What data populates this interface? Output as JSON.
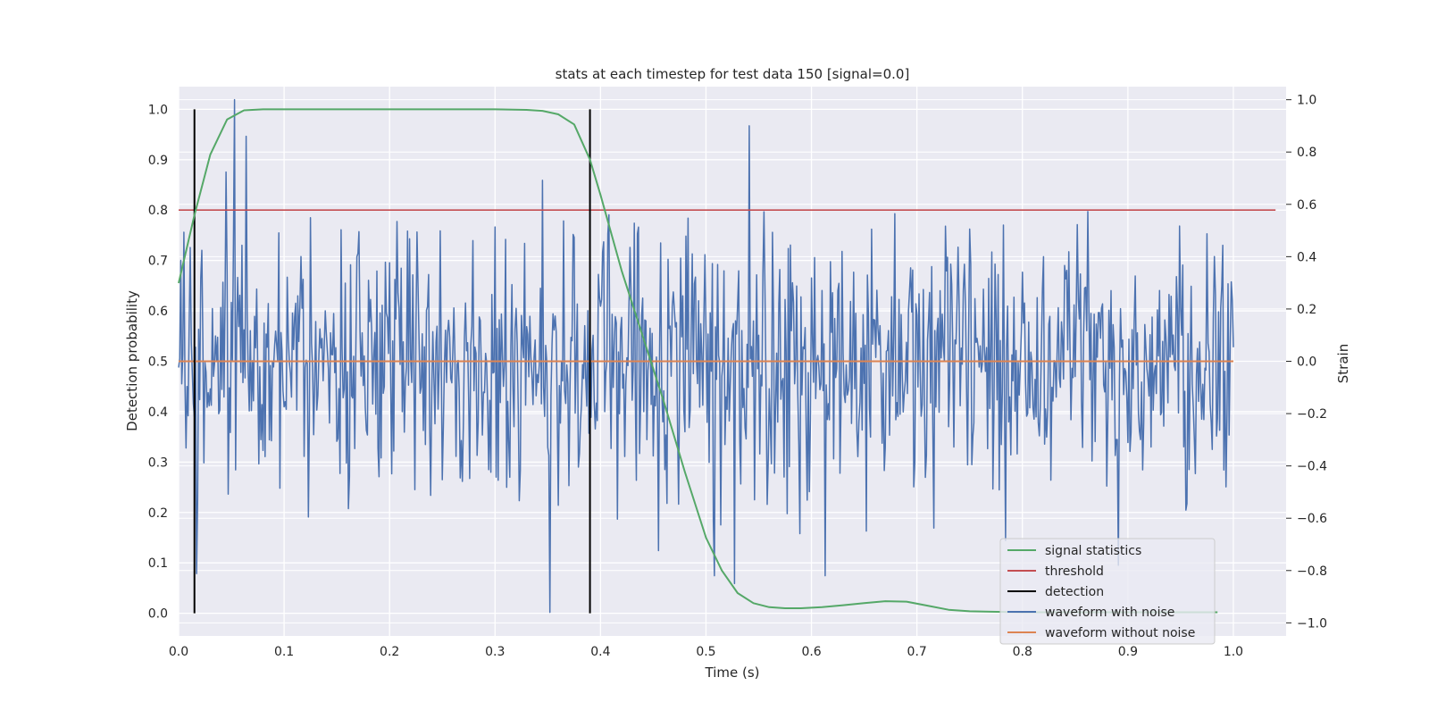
{
  "chart_data": {
    "type": "line",
    "title": "stats at each timestep for test data 150 [signal=0.0]",
    "xlabel": "Time (s)",
    "ylabel_left": "Detection probability",
    "ylabel_right": "Strain",
    "xlim": [
      0.0,
      1.05
    ],
    "ylim_left": [
      -0.045,
      1.045
    ],
    "ylim_right": [
      -1.05,
      1.05
    ],
    "xticks": [
      "0.0",
      "0.1",
      "0.2",
      "0.3",
      "0.4",
      "0.5",
      "0.6",
      "0.7",
      "0.8",
      "0.9",
      "1.0"
    ],
    "yticks_left": [
      "0.0",
      "0.1",
      "0.2",
      "0.3",
      "0.4",
      "0.5",
      "0.6",
      "0.7",
      "0.8",
      "0.9",
      "1.0"
    ],
    "yticks_right": [
      "−1.0",
      "−0.8",
      "−0.6",
      "−0.4",
      "−0.2",
      "0.0",
      "0.2",
      "0.4",
      "0.6",
      "0.8",
      "1.0"
    ],
    "grid": true,
    "legend_position": "lower-right",
    "colors": {
      "signal_statistics": "#55a868",
      "threshold": "#c44e52",
      "detection": "#000000",
      "waveform_with_noise": "#4c72b0",
      "waveform_without_noise": "#dd8452",
      "plot_background": "#eaeaf2",
      "grid": "#ffffff"
    },
    "series": [
      {
        "name": "signal statistics",
        "axis": "left",
        "x": [
          0.0,
          0.015,
          0.03,
          0.046,
          0.062,
          0.08,
          0.1,
          0.2,
          0.3,
          0.33,
          0.345,
          0.36,
          0.375,
          0.39,
          0.4,
          0.42,
          0.44,
          0.46,
          0.48,
          0.5,
          0.515,
          0.53,
          0.545,
          0.56,
          0.575,
          0.59,
          0.61,
          0.63,
          0.65,
          0.67,
          0.69,
          0.71,
          0.73,
          0.75,
          0.77,
          0.8,
          0.85,
          0.9,
          0.95,
          0.985
        ],
        "y": [
          0.655,
          0.79,
          0.91,
          0.98,
          0.998,
          1.0,
          1.0,
          1.0,
          1.0,
          0.999,
          0.997,
          0.99,
          0.97,
          0.9,
          0.83,
          0.68,
          0.55,
          0.42,
          0.28,
          0.15,
          0.085,
          0.04,
          0.02,
          0.012,
          0.01,
          0.01,
          0.012,
          0.016,
          0.02,
          0.024,
          0.023,
          0.015,
          0.007,
          0.004,
          0.003,
          0.002,
          0.002,
          0.002,
          0.002,
          0.002
        ]
      },
      {
        "name": "threshold",
        "axis": "left",
        "x": [
          0.0,
          1.04
        ],
        "y": [
          0.8,
          0.8
        ]
      },
      {
        "name": "detection",
        "axis": "left",
        "type": "vlines",
        "x": [
          0.015,
          0.39
        ],
        "y": [
          0.0,
          1.0
        ]
      },
      {
        "name": "waveform with noise",
        "axis": "right",
        "x_start": 0.0,
        "x_end": 1.0,
        "peaks": [
          {
            "x": 0.053,
            "y": 1.0
          },
          {
            "x": 0.064,
            "y": 0.86
          },
          {
            "x": 0.352,
            "y": -0.96
          },
          {
            "x": 0.527,
            "y": -0.85
          },
          {
            "x": 0.541,
            "y": 0.9
          },
          {
            "x": 0.891,
            "y": -0.78
          }
        ]
      },
      {
        "name": "waveform without noise",
        "axis": "right",
        "x": [
          0.0,
          1.0
        ],
        "y": [
          0.0,
          0.0
        ]
      }
    ]
  }
}
